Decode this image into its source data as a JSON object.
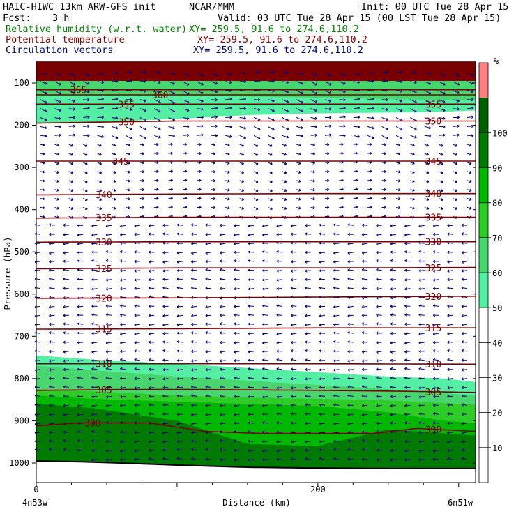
{
  "header": {
    "title": "HAIC-HIWC 13km ARW-GFS init",
    "source": "NCAR/MMM",
    "init": "Init: 00 UTC Tue 28 Apr 15",
    "fcst_label": "Fcst:",
    "fcst_value": "3 h",
    "valid": "Valid: 03 UTC Tue 28 Apr 15 (00 LST Tue 28 Apr 15)"
  },
  "fields": [
    {
      "name": "Relative humidity (w.r.t. water)",
      "xy": "XY= 259.5, 91.6 to 274.6,110.2",
      "color": "#008000"
    },
    {
      "name": "Potential temperature",
      "xy": "XY= 259.5, 91.6 to 274.6,110.2",
      "color": "#8b0000"
    },
    {
      "name": "Circulation vectors",
      "xy": "XY= 259.5, 91.6 to 274.6,110.2",
      "color": "#00007f"
    }
  ],
  "chart_data": {
    "type": "heatmap",
    "xlabel": "Distance (km)",
    "ylabel": "Pressure (hPa)",
    "x_ticks": [
      0,
      200
    ],
    "xlim": [
      0,
      312
    ],
    "y_ticks": [
      100,
      200,
      300,
      400,
      500,
      600,
      700,
      800,
      900,
      1000
    ],
    "ylim": [
      1050,
      50
    ],
    "x_start_label": "4n53w",
    "x_end_label": "6n51w",
    "colorbar": {
      "unit": "%",
      "levels": [
        10,
        20,
        30,
        40,
        50,
        60,
        70,
        80,
        90,
        100
      ],
      "colors": [
        "#ffffff",
        "#ffffff",
        "#ffffff",
        "#ffffff",
        "#ffffff",
        "#55efa3",
        "#4ad66f",
        "#2ecc27",
        "#00b800",
        "#007a00",
        "#006000",
        "#ff8080"
      ]
    },
    "rh_fill_layers": [
      {
        "level": "lt50",
        "color": "#ffffff",
        "top": [
          50,
          50,
          50,
          50,
          50,
          50,
          50,
          50
        ]
      },
      {
        "level": "50-60",
        "color": "#55efa3",
        "top_upper": [
          55,
          55,
          55,
          55,
          55,
          55,
          55,
          55
        ],
        "bottom_upper": [
          196,
          193,
          185,
          176,
          172,
          170,
          168,
          165
        ],
        "x": [
          0,
          40,
          100,
          150,
          200,
          250,
          290,
          312
        ],
        "top_lower": [
          745,
          755,
          765,
          775,
          785,
          795,
          800,
          808
        ]
      },
      {
        "level": "60-70",
        "color": "#4ad66f",
        "x": [
          0,
          40,
          100,
          150,
          200,
          250,
          290,
          312
        ],
        "top_upper_band": [
          55,
          55,
          55,
          55,
          55,
          55,
          55,
          55
        ],
        "bottom_upper_band": [
          130,
          130,
          130,
          132,
          135,
          138,
          140,
          140
        ],
        "top_lower": [
          770,
          780,
          795,
          805,
          815,
          825,
          835,
          840
        ]
      },
      {
        "level": "70-80",
        "color": "#2ecc27",
        "x": [
          0,
          40,
          100,
          150,
          200,
          250,
          290,
          312
        ],
        "top_lower": [
          825,
          830,
          840,
          845,
          848,
          852,
          858,
          862
        ]
      },
      {
        "level": "80-90",
        "color": "#00b800",
        "x": [
          0,
          40,
          100,
          150,
          200,
          250,
          290,
          312
        ],
        "top_lower": [
          840,
          848,
          855,
          860,
          865,
          880,
          900,
          905
        ]
      },
      {
        "level": "90-100",
        "color": "#007a00",
        "x": [
          0,
          40,
          100,
          150,
          200,
          250,
          290,
          312
        ],
        "top_lower": [
          860,
          870,
          900,
          955,
          960,
          920,
          930,
          935
        ]
      },
      {
        "level": "ge100",
        "color": "#7a0000",
        "top": [
          50,
          50,
          50,
          50,
          50,
          50,
          50,
          50
        ],
        "bottom": [
          95,
          95,
          95,
          95,
          95,
          95,
          95,
          95
        ]
      }
    ],
    "theta_contours": [
      {
        "value": 300,
        "x": [
          0,
          30,
          80,
          120,
          160,
          200,
          240,
          270,
          312
        ],
        "p": [
          912,
          905,
          905,
          925,
          930,
          930,
          930,
          918,
          925
        ],
        "labels": [
          {
            "x": 40,
            "value": "300"
          },
          {
            "x": 282,
            "value": "300"
          }
        ]
      },
      {
        "value": 305,
        "x": [
          0,
          60,
          120,
          200,
          260,
          312
        ],
        "p": [
          828,
          826,
          826,
          828,
          830,
          833
        ],
        "labels": [
          {
            "x": 48,
            "value": "305"
          },
          {
            "x": 282,
            "value": "305"
          }
        ]
      },
      {
        "value": 310,
        "x": [
          0,
          100,
          200,
          312
        ],
        "p": [
          765,
          765,
          765,
          766
        ],
        "labels": [
          {
            "x": 48,
            "value": "310"
          },
          {
            "x": 282,
            "value": "310"
          }
        ]
      },
      {
        "value": 315,
        "x": [
          0,
          100,
          200,
          312
        ],
        "p": [
          683,
          682,
          680,
          680
        ],
        "labels": [
          {
            "x": 48,
            "value": "315"
          },
          {
            "x": 282,
            "value": "315"
          }
        ]
      },
      {
        "value": 320,
        "x": [
          0,
          100,
          200,
          312
        ],
        "p": [
          610,
          609,
          607,
          605
        ],
        "labels": [
          {
            "x": 48,
            "value": "320"
          },
          {
            "x": 282,
            "value": "320"
          }
        ]
      },
      {
        "value": 325,
        "x": [
          0,
          100,
          200,
          312
        ],
        "p": [
          540,
          538,
          538,
          537
        ],
        "labels": [
          {
            "x": 48,
            "value": "325"
          },
          {
            "x": 282,
            "value": "325"
          }
        ]
      },
      {
        "value": 330,
        "x": [
          0,
          100,
          200,
          312
        ],
        "p": [
          477,
          476,
          476,
          476
        ],
        "labels": [
          {
            "x": 48,
            "value": "330"
          },
          {
            "x": 282,
            "value": "330"
          }
        ]
      },
      {
        "value": 335,
        "x": [
          0,
          100,
          200,
          312
        ],
        "p": [
          420,
          418,
          418,
          418
        ],
        "labels": [
          {
            "x": 48,
            "value": "335"
          },
          {
            "x": 282,
            "value": "335"
          }
        ]
      },
      {
        "value": 340,
        "x": [
          0,
          100,
          200,
          312
        ],
        "p": [
          365,
          363,
          362,
          362
        ],
        "labels": [
          {
            "x": 48,
            "value": "340"
          },
          {
            "x": 282,
            "value": "340"
          }
        ]
      },
      {
        "value": 345,
        "x": [
          0,
          100,
          200,
          312
        ],
        "p": [
          285,
          285,
          285,
          285
        ],
        "labels": [
          {
            "x": 60,
            "value": "345"
          },
          {
            "x": 282,
            "value": "345"
          }
        ]
      },
      {
        "value": 350,
        "x": [
          0,
          100,
          200,
          312
        ],
        "p": [
          195,
          190,
          190,
          190
        ],
        "labels": [
          {
            "x": 64,
            "value": "350"
          },
          {
            "x": 282,
            "value": "350"
          }
        ]
      },
      {
        "value": 355,
        "x": [
          0,
          100,
          200,
          312
        ],
        "p": [
          150,
          150,
          150,
          150
        ],
        "labels": [
          {
            "x": 64,
            "value": "355"
          },
          {
            "x": 282,
            "value": "355"
          }
        ]
      },
      {
        "value": 360,
        "x": [
          0,
          100,
          200,
          312
        ],
        "p": [
          128,
          128,
          128,
          128
        ],
        "labels": [
          {
            "x": 88,
            "value": "360"
          }
        ]
      },
      {
        "value": 365,
        "x": [
          0,
          100,
          200,
          312
        ],
        "p": [
          116,
          116,
          116,
          116
        ],
        "labels": [
          {
            "x": 30,
            "value": "365"
          }
        ]
      }
    ],
    "surface_line": {
      "x": [
        0,
        30,
        60,
        100,
        150,
        200,
        250,
        312
      ],
      "p": [
        995,
        997,
        1000,
        1005,
        1010,
        1012,
        1013,
        1013
      ]
    }
  }
}
